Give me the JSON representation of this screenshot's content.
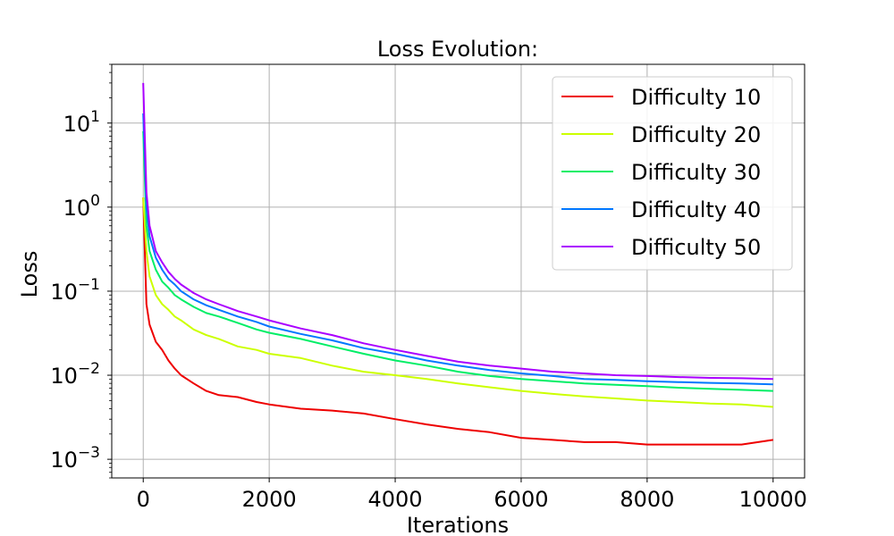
{
  "chart_data": {
    "type": "line",
    "title": "Loss Evolution:",
    "xlabel": "Iterations",
    "ylabel": "Loss",
    "xlim": [
      -500,
      10500
    ],
    "ylim": [
      0.0006,
      50
    ],
    "yscale": "log",
    "grid": true,
    "legend_position": "top-right",
    "x_ticks": [
      {
        "value": 0,
        "label": "0"
      },
      {
        "value": 2000,
        "label": "2000"
      },
      {
        "value": 4000,
        "label": "4000"
      },
      {
        "value": 6000,
        "label": "6000"
      },
      {
        "value": 8000,
        "label": "8000"
      },
      {
        "value": 10000,
        "label": "10000"
      }
    ],
    "y_ticks": [
      {
        "value": 10,
        "base": "10",
        "exp": "1"
      },
      {
        "value": 1,
        "base": "10",
        "exp": "0"
      },
      {
        "value": 0.1,
        "base": "10",
        "exp": "−1"
      },
      {
        "value": 0.01,
        "base": "10",
        "exp": "−2"
      },
      {
        "value": 0.001,
        "base": "10",
        "exp": "−3"
      }
    ],
    "x": [
      0,
      50,
      100,
      200,
      300,
      400,
      500,
      600,
      800,
      1000,
      1200,
      1500,
      1800,
      2000,
      2500,
      3000,
      3500,
      4000,
      4500,
      5000,
      5500,
      6000,
      6500,
      7000,
      7500,
      8000,
      8500,
      9000,
      9500,
      10000
    ],
    "series": [
      {
        "name": "Difficulty 10",
        "color": "#ee0000",
        "values": [
          1.3,
          0.07,
          0.04,
          0.025,
          0.02,
          0.015,
          0.012,
          0.01,
          0.008,
          0.0065,
          0.0058,
          0.0055,
          0.0048,
          0.0045,
          0.004,
          0.0038,
          0.0035,
          0.003,
          0.0026,
          0.0023,
          0.0021,
          0.0018,
          0.0017,
          0.0016,
          0.0016,
          0.0015,
          0.0015,
          0.0015,
          0.0015,
          0.0017
        ]
      },
      {
        "name": "Difficulty 20",
        "color": "#ccff00",
        "values": [
          1.3,
          0.3,
          0.15,
          0.09,
          0.07,
          0.06,
          0.05,
          0.045,
          0.035,
          0.03,
          0.027,
          0.022,
          0.02,
          0.018,
          0.016,
          0.013,
          0.011,
          0.01,
          0.009,
          0.008,
          0.0072,
          0.0065,
          0.006,
          0.0056,
          0.0053,
          0.005,
          0.0048,
          0.0046,
          0.0045,
          0.0042
        ]
      },
      {
        "name": "Difficulty 30",
        "color": "#00ee66",
        "values": [
          8,
          0.6,
          0.3,
          0.18,
          0.13,
          0.11,
          0.09,
          0.08,
          0.065,
          0.055,
          0.05,
          0.042,
          0.035,
          0.032,
          0.027,
          0.022,
          0.018,
          0.015,
          0.013,
          0.011,
          0.0098,
          0.009,
          0.0085,
          0.008,
          0.0077,
          0.0074,
          0.0071,
          0.0069,
          0.0067,
          0.0065
        ]
      },
      {
        "name": "Difficulty 40",
        "color": "#0077ff",
        "values": [
          13,
          1.0,
          0.45,
          0.25,
          0.18,
          0.14,
          0.12,
          0.1,
          0.08,
          0.068,
          0.06,
          0.05,
          0.043,
          0.038,
          0.031,
          0.026,
          0.021,
          0.018,
          0.015,
          0.013,
          0.0115,
          0.0105,
          0.0098,
          0.009,
          0.0088,
          0.0085,
          0.0083,
          0.0081,
          0.008,
          0.0078
        ]
      },
      {
        "name": "Difficulty 50",
        "color": "#aa00ff",
        "values": [
          30,
          1.5,
          0.6,
          0.3,
          0.22,
          0.17,
          0.14,
          0.12,
          0.095,
          0.08,
          0.07,
          0.058,
          0.05,
          0.045,
          0.036,
          0.03,
          0.024,
          0.02,
          0.017,
          0.0145,
          0.013,
          0.012,
          0.011,
          0.0105,
          0.01,
          0.0098,
          0.0095,
          0.0093,
          0.0092,
          0.009
        ]
      }
    ]
  }
}
